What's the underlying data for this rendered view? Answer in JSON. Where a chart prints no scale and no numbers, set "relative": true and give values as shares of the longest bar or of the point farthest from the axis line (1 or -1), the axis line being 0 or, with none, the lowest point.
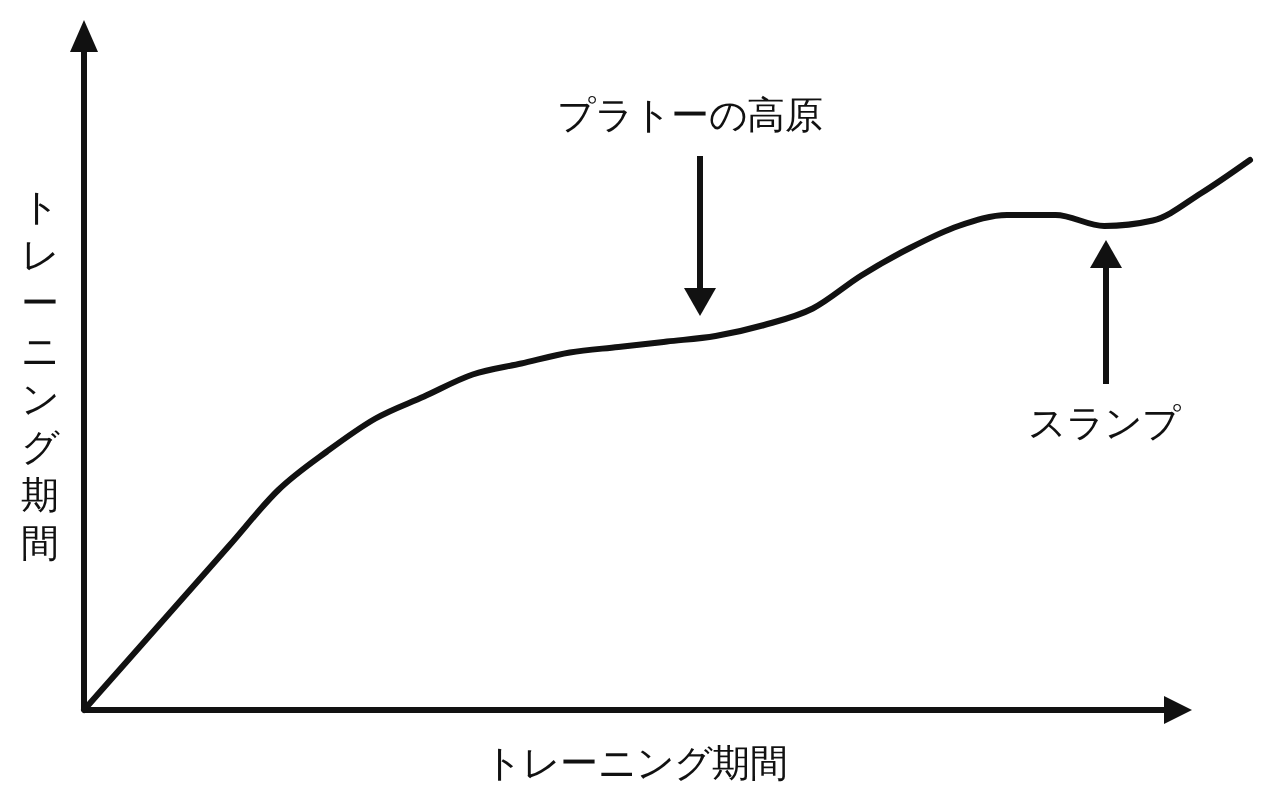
{
  "chart_data": {
    "type": "line",
    "relative": true,
    "xlabel": "トレーニング期間",
    "ylabel": "トレーニング期間",
    "categories": [
      null,
      null,
      null,
      null,
      null,
      null,
      null,
      null,
      null,
      null,
      null,
      null,
      null,
      null,
      null,
      null,
      null,
      null,
      null,
      null,
      null,
      null,
      null,
      null,
      null
    ],
    "series": [
      {
        "color": "#111111",
        "values": [
          0,
          0.1,
          0.2,
          0.3,
          0.4,
          0.47,
          0.53,
          0.57,
          0.61,
          0.63,
          0.65,
          0.66,
          0.67,
          0.68,
          0.7,
          0.73,
          0.79,
          0.84,
          0.88,
          0.9,
          0.9,
          0.88,
          0.89,
          0.94,
          1
        ]
      }
    ],
    "annotations": [
      "プラトーの高原",
      "スランプ"
    ],
    "marker": "none",
    "line_style": "solid"
  }
}
